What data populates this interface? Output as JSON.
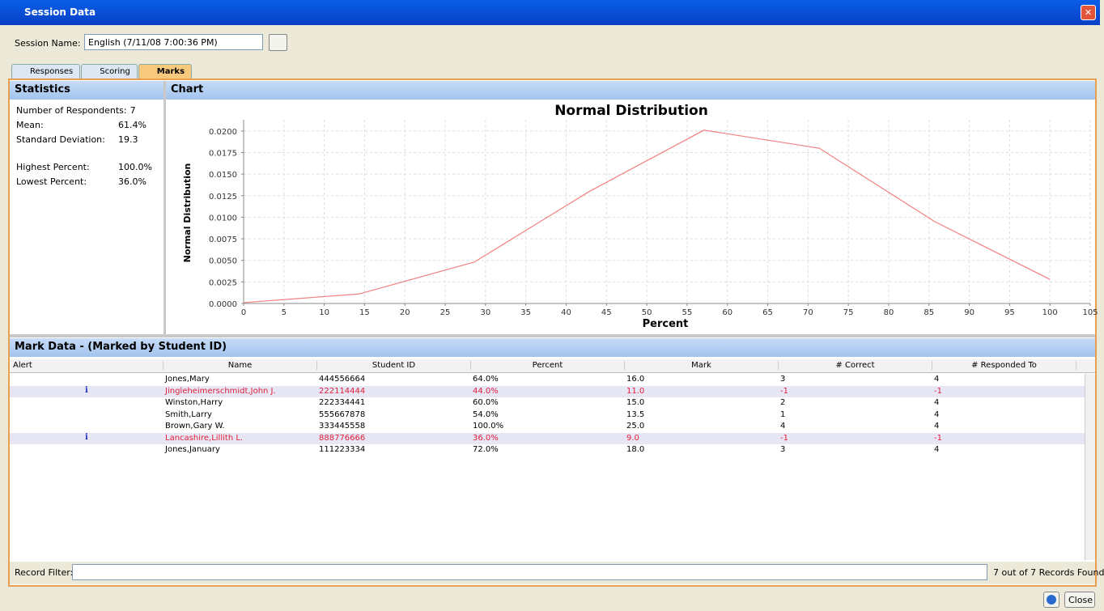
{
  "window": {
    "title": "Session Data"
  },
  "session": {
    "label": "Session Name:",
    "value": "English (7/11/08 7:00:36 PM)"
  },
  "tabs": [
    "Responses",
    "Scoring",
    "Marks"
  ],
  "statistics": {
    "title": "Statistics",
    "rows": [
      {
        "label": "Number of Respondents:",
        "value": "7"
      },
      {
        "label": "Mean:",
        "value": "61.4%"
      },
      {
        "label": "Standard Deviation:",
        "value": "19.3"
      },
      {
        "label": "Highest Percent:",
        "value": "100.0%"
      },
      {
        "label": "Lowest Percent:",
        "value": "36.0%"
      }
    ]
  },
  "chart_panel": {
    "title": "Chart"
  },
  "chart_data": {
    "type": "line",
    "title": "Normal Distribution",
    "x_label": "Percent",
    "y_label": "Normal Distribution",
    "color": "#f08080",
    "grid": true,
    "x": [
      0,
      14.3,
      28.6,
      42.9,
      57.1,
      71.4,
      85.7,
      100
    ],
    "values": [
      0.0001,
      0.0011,
      0.0048,
      0.013,
      0.0201,
      0.018,
      0.0095,
      0.0028
    ],
    "xlim": [
      0,
      105
    ],
    "xticks": [
      0,
      5,
      10,
      15,
      20,
      25,
      30,
      35,
      40,
      45,
      50,
      55,
      60,
      65,
      70,
      75,
      80,
      85,
      90,
      95,
      100,
      105
    ],
    "ylim": [
      0,
      0.0213
    ],
    "yticks": [
      {
        "value": 0,
        "label": "0.0000"
      },
      {
        "value": 0.0025,
        "label": "0.0025"
      },
      {
        "value": 0.005,
        "label": "0.0050"
      },
      {
        "value": 0.0075,
        "label": "0.0075"
      },
      {
        "value": 0.01,
        "label": "0.0100"
      },
      {
        "value": 0.0125,
        "label": "0.0125"
      },
      {
        "value": 0.015,
        "label": "0.0150"
      },
      {
        "value": 0.0175,
        "label": "0.0175"
      },
      {
        "value": 0.02,
        "label": "0.0200"
      }
    ]
  },
  "mark_data": {
    "title": "Mark Data - (Marked by Student ID)",
    "columns": [
      "Alert",
      "Name",
      "Student ID",
      "Percent",
      "Mark",
      "# Correct",
      "# Responded To"
    ],
    "rows": [
      {
        "cells": [
          "Jones,Mary",
          "444556664",
          "64.0%",
          "16.0",
          "3",
          "4"
        ]
      },
      {
        "alert": "i",
        "cells": [
          "Jingleheimerschmidt,John J.",
          "222114444",
          "44.0%",
          "11.0",
          "-1",
          "-1"
        ]
      },
      {
        "cells": [
          "Winston,Harry",
          "222334441",
          "60.0%",
          "15.0",
          "2",
          "4"
        ]
      },
      {
        "cells": [
          "Smith,Larry",
          "555667878",
          "54.0%",
          "13.5",
          "1",
          "4"
        ]
      },
      {
        "cells": [
          "Brown,Gary W.",
          "333445558",
          "100.0%",
          "25.0",
          "4",
          "4"
        ]
      },
      {
        "alert": "i",
        "cells": [
          "Lancashire,Lillith L.",
          "888776666",
          "36.0%",
          "9.0",
          "-1",
          "-1"
        ]
      },
      {
        "cells": [
          "Jones,January",
          "111223334",
          "72.0%",
          "18.0",
          "3",
          "4"
        ]
      }
    ]
  },
  "footer": {
    "filter_label": "Record Filter:",
    "count": "7 out of 7 Records Found",
    "close": "Close"
  }
}
